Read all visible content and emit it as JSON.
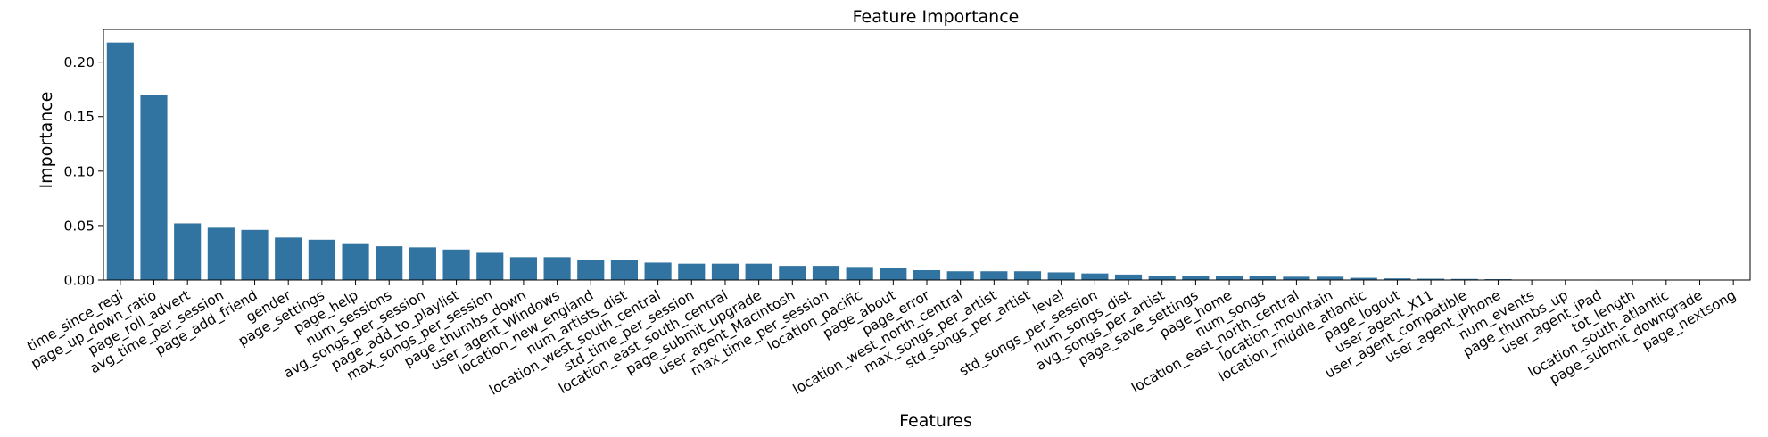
{
  "chart_data": {
    "type": "bar",
    "title": "Feature Importance",
    "xlabel": "Features",
    "ylabel": "Importance",
    "ylim": [
      0,
      0.23
    ],
    "yticks": [
      0.0,
      0.05,
      0.1,
      0.15,
      0.2
    ],
    "ytick_labels": [
      "0.00",
      "0.05",
      "0.10",
      "0.15",
      "0.20"
    ],
    "grid": false,
    "bar_color": "#3274a1",
    "categories": [
      "time_since_regi",
      "page_up_down_ratio",
      "page_roll_advert",
      "avg_time_per_session",
      "page_add_friend",
      "gender",
      "page_settings",
      "page_help",
      "num_sessions",
      "avg_songs_per_session",
      "page_add_to_playlist",
      "max_songs_per_session",
      "page_thumbs_down",
      "user_agent_Windows",
      "location_new_england",
      "num_artists_dist",
      "location_west_south_central",
      "std_time_per_session",
      "location_east_south_central",
      "page_submit_upgrade",
      "user_agent_Macintosh",
      "max_time_per_session",
      "location_pacific",
      "page_about",
      "page_error",
      "location_west_north_central",
      "max_songs_per_artist",
      "std_songs_per_artist",
      "level",
      "std_songs_per_session",
      "num_songs_dist",
      "avg_songs_per_artist",
      "page_save_settings",
      "page_home",
      "num_songs",
      "location_east_north_central",
      "location_mountain",
      "location_middle_atlantic",
      "page_logout",
      "user_agent_X11",
      "user_agent_compatible",
      "user_agent_iPhone",
      "num_events",
      "page_thumbs_up",
      "user_agent_iPad",
      "tot_length",
      "location_south_atlantic",
      "page_submit_downgrade",
      "page_nextsong"
    ],
    "values": [
      0.218,
      0.17,
      0.052,
      0.048,
      0.046,
      0.039,
      0.037,
      0.033,
      0.031,
      0.03,
      0.028,
      0.025,
      0.021,
      0.021,
      0.018,
      0.018,
      0.016,
      0.015,
      0.015,
      0.015,
      0.013,
      0.013,
      0.012,
      0.011,
      0.009,
      0.008,
      0.008,
      0.008,
      0.007,
      0.006,
      0.005,
      0.004,
      0.004,
      0.0035,
      0.0035,
      0.003,
      0.003,
      0.002,
      0.0015,
      0.0012,
      0.001,
      0.0008,
      0.0,
      0.0,
      0.0,
      0.0,
      0.0,
      0.0,
      0.0
    ]
  }
}
